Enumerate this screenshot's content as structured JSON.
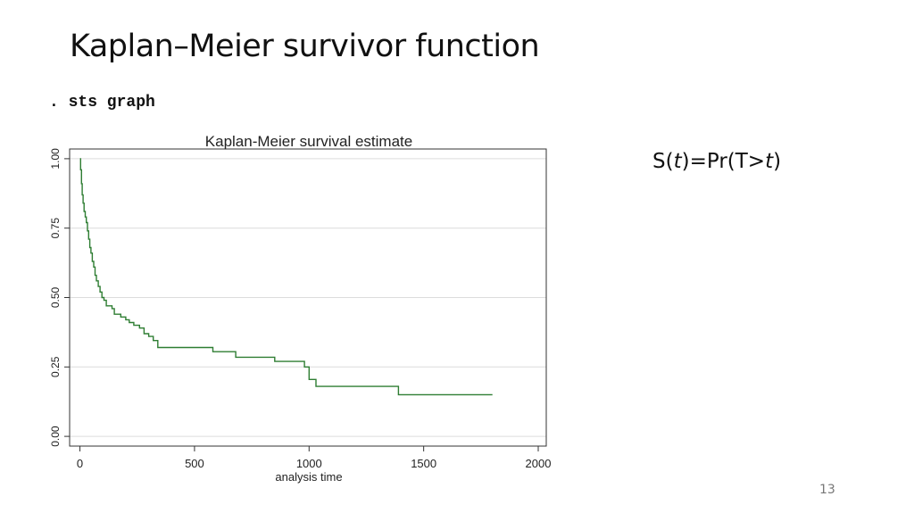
{
  "slide": {
    "title": "Kaplan–Meier survivor function",
    "command": ". sts graph",
    "formula": {
      "s": "S(",
      "t1": "t",
      "mid": ")=Pr(T>",
      "t2": "t",
      "end": ")"
    },
    "page_number": "13"
  },
  "colors": {
    "curve": "#2e7d32",
    "grid": "#dcdcdc",
    "axis": "#333333"
  },
  "chart_data": {
    "type": "line",
    "title": "Kaplan-Meier survival estimate",
    "xlabel": "analysis time",
    "ylabel": "",
    "xlim": [
      0,
      2000
    ],
    "ylim": [
      0,
      1
    ],
    "x_ticks": [
      0,
      500,
      1000,
      1500,
      2000
    ],
    "x_tick_labels": [
      "0",
      "500",
      "1000",
      "1500",
      "2000"
    ],
    "y_ticks": [
      0,
      0.25,
      0.5,
      0.75,
      1
    ],
    "y_tick_labels": [
      "0.00",
      "0.25",
      "0.50",
      "0.75",
      "1.00"
    ],
    "grid": true,
    "step": true,
    "series": [
      {
        "x": [
          0,
          3,
          7,
          10,
          14,
          18,
          23,
          28,
          33,
          38,
          43,
          48,
          54,
          60,
          66,
          72,
          80,
          88,
          96,
          105,
          115,
          140,
          150,
          178,
          200,
          215,
          235,
          260,
          280,
          300,
          320,
          340,
          580,
          680,
          850,
          980,
          1000,
          1030,
          1390,
          1800
        ],
        "y": [
          1.0,
          0.96,
          0.91,
          0.87,
          0.84,
          0.81,
          0.79,
          0.77,
          0.74,
          0.71,
          0.68,
          0.66,
          0.63,
          0.61,
          0.58,
          0.56,
          0.54,
          0.52,
          0.5,
          0.49,
          0.47,
          0.46,
          0.44,
          0.43,
          0.42,
          0.41,
          0.4,
          0.39,
          0.37,
          0.36,
          0.345,
          0.32,
          0.305,
          0.285,
          0.27,
          0.25,
          0.205,
          0.18,
          0.15,
          0.15
        ]
      }
    ]
  }
}
